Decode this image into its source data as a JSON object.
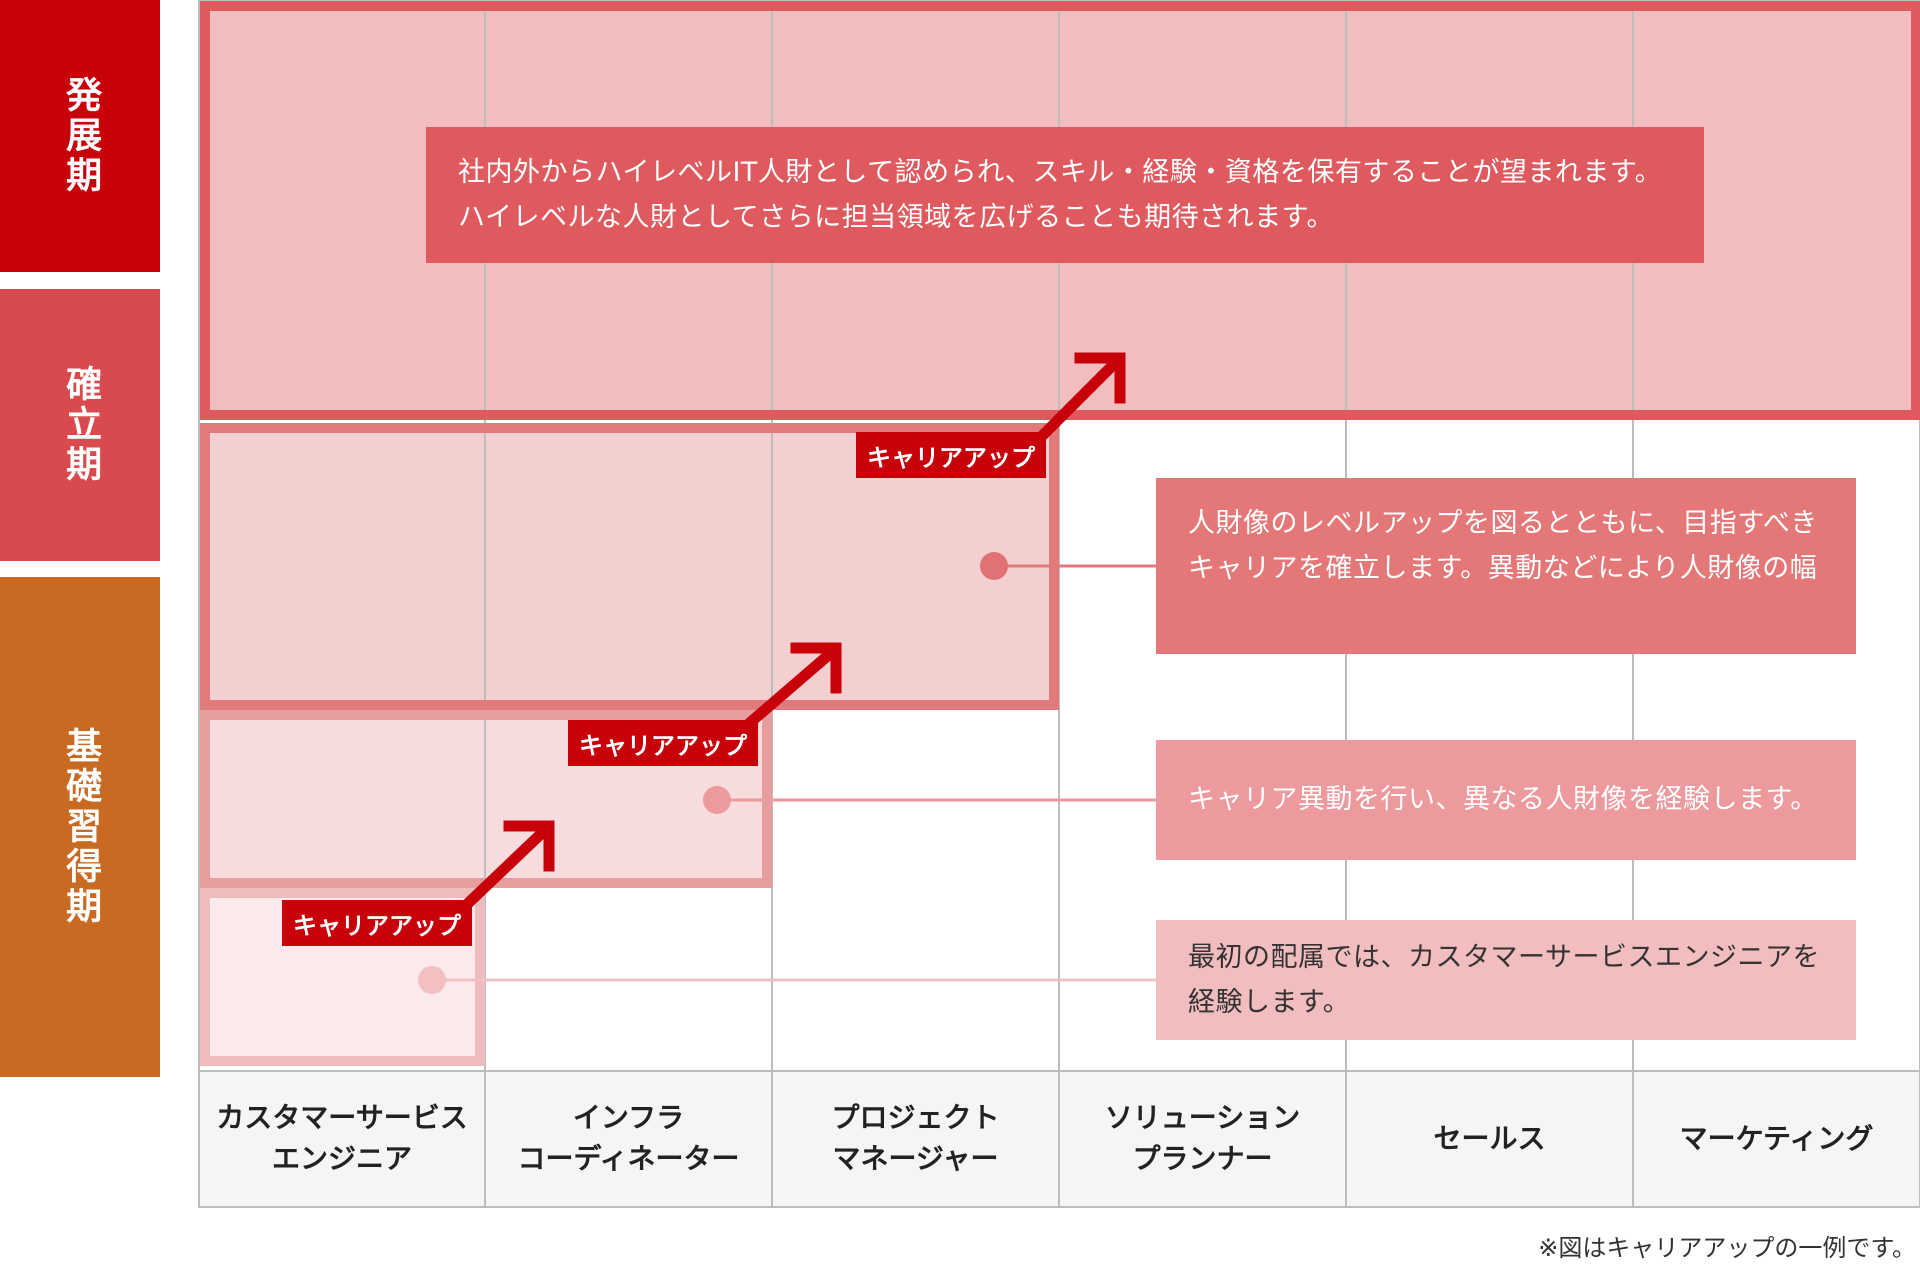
{
  "stages": [
    {
      "label": "発展期",
      "color": "#c8000a"
    },
    {
      "label": "確立期",
      "color": "#d94a4e"
    },
    {
      "label": "基礎習得期",
      "color": "#c86a22"
    }
  ],
  "jobs": [
    "カスタマーサービス\nエンジニア",
    "インフラ\nコーディネーター",
    "プロジェクト\nマネージャー",
    "ソリューション\nプランナー",
    "セールス",
    "マーケティング"
  ],
  "callouts": {
    "development": "社内外からハイレベルIT人財として認められ、スキル・経験・資格を保有することが望まれます。\nハイレベルな人財としてさらに担当領域を広げることも期待されます。",
    "establishment": "人財像のレベルアップを図るとともに、目指すべき\nキャリアを確立します。異動などにより人財像の幅",
    "rotation": "キャリア異動を行い、異なる人財像を経験します。",
    "initial": "最初の配属では、カスタマーサービスエンジニアを\n経験します。"
  },
  "badges": [
    "キャリアアップ",
    "キャリアアップ",
    "キャリアアップ"
  ],
  "footnote": "※図はキャリアアップの一例です。",
  "colors": {
    "accent": "#c8000a",
    "development_fill": "#f2bdbe",
    "development_border": "#df5a5e",
    "establishment_fill": "#f4cfd0",
    "establishment_border": "#e17a7c",
    "mid_fill": "#f7dcdd",
    "mid_border": "#e79c9e",
    "base_fill": "#fbeaeb",
    "base_border": "#efbcbe",
    "grid_line": "#bdbdbd"
  }
}
